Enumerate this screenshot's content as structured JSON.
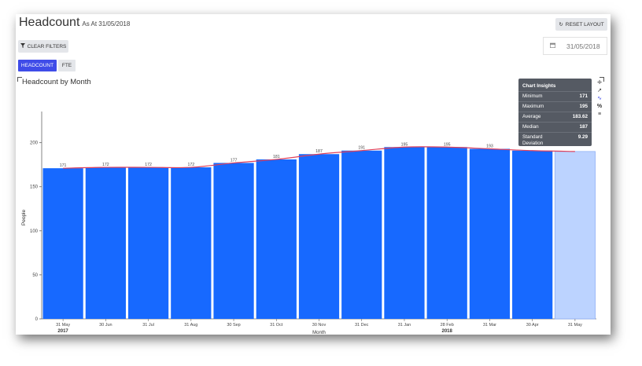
{
  "page": {
    "title": "Headcount",
    "as_at": "As At 31/05/2018",
    "reset_label": "RESET LAYOUT",
    "clear_label": "CLEAR FILTERS",
    "date_value": "31/05/2018",
    "tabs": [
      "HEADCOUNT",
      "FTE"
    ],
    "active_tab": "HEADCOUNT"
  },
  "icons": {
    "reset": "refresh-icon",
    "clear": "filter-icon",
    "date": "calendar-icon",
    "tools": [
      "move-icon",
      "external-link-icon",
      "trend-line-icon",
      "percent-icon",
      "sliders-icon"
    ]
  },
  "colors": {
    "bar": "#1769ff",
    "bar_highlight": "#bcd3ff",
    "trend": "#e0405a",
    "accent": "#3f4ce8"
  },
  "insights": {
    "title": "Chart Insights",
    "rows": [
      {
        "label": "Minimum",
        "value": "171"
      },
      {
        "label": "Maximum",
        "value": "195"
      },
      {
        "label": "Average",
        "value": "183.62"
      },
      {
        "label": "Median",
        "value": "187"
      },
      {
        "label": "Standard Deviation",
        "value": "9.29"
      }
    ]
  },
  "chart_data": {
    "type": "bar",
    "title": "Headcount by Month",
    "xlabel": "Month",
    "ylabel": "People",
    "categories": [
      "31 May",
      "30 Jun",
      "31 Jul",
      "31 Aug",
      "30 Sep",
      "31 Oct",
      "30 Nov",
      "31 Dec",
      "31 Jan",
      "28 Feb",
      "31 Mar",
      "30 Apr",
      "31 May"
    ],
    "year_labels": [
      "2017",
      "2018"
    ],
    "values": [
      171,
      172,
      172,
      172,
      177,
      181,
      187,
      191,
      195,
      195,
      193,
      191,
      190
    ],
    "data_labels": [
      "171",
      "172",
      "172",
      "172",
      "177",
      "181",
      "187",
      "191",
      "195",
      "195",
      "193",
      "",
      ""
    ],
    "highlighted_index": 12,
    "trend_line": true,
    "ylim": [
      0,
      230
    ],
    "yticks": [
      0,
      50,
      100,
      150,
      200
    ]
  }
}
